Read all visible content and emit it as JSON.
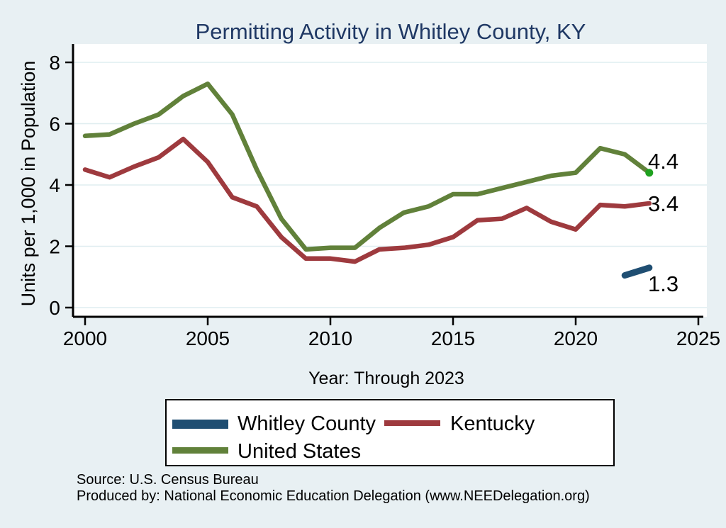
{
  "title": "Permitting Activity in Whitley County, KY",
  "colors": {
    "background": "#e8f0f3",
    "plot_background": "#ffffff",
    "grid": "#dfedf0",
    "axis": "#000000",
    "title_text": "#1f3864",
    "end_marker": "#1fa11f"
  },
  "chart_data": {
    "type": "line",
    "title": "Permitting Activity in Whitley County, KY",
    "xlabel": "Year: Through 2023",
    "ylabel": "Units per 1,000 in Population",
    "xlim": [
      2000,
      2025
    ],
    "ylim": [
      0,
      8
    ],
    "x_ticks": [
      2000,
      2005,
      2010,
      2015,
      2020,
      2025
    ],
    "y_ticks": [
      0,
      2,
      4,
      6,
      8
    ],
    "grid": true,
    "legend_position": "bottom",
    "series": [
      {
        "name": "Whitley County",
        "color": "#1f4e72",
        "line_width": 9,
        "x": [
          2022,
          2023
        ],
        "values": [
          1.05,
          1.3
        ],
        "end_label": "1.3"
      },
      {
        "name": "Kentucky",
        "color": "#9e3a3e",
        "line_width": 6.5,
        "x": [
          2000,
          2001,
          2002,
          2003,
          2004,
          2005,
          2006,
          2007,
          2008,
          2009,
          2010,
          2011,
          2012,
          2013,
          2014,
          2015,
          2016,
          2017,
          2018,
          2019,
          2020,
          2021,
          2022,
          2023
        ],
        "values": [
          4.5,
          4.25,
          4.6,
          4.9,
          5.5,
          4.75,
          3.6,
          3.3,
          2.3,
          1.6,
          1.6,
          1.5,
          1.9,
          1.95,
          2.05,
          2.3,
          2.85,
          2.9,
          3.25,
          2.8,
          2.55,
          3.35,
          3.3,
          3.4
        ],
        "end_label": "3.4"
      },
      {
        "name": "United States",
        "color": "#61813a",
        "line_width": 6.5,
        "x": [
          2000,
          2001,
          2002,
          2003,
          2004,
          2005,
          2006,
          2007,
          2008,
          2009,
          2010,
          2011,
          2012,
          2013,
          2014,
          2015,
          2016,
          2017,
          2018,
          2019,
          2020,
          2021,
          2022,
          2023
        ],
        "values": [
          5.6,
          5.65,
          6.0,
          6.3,
          6.9,
          7.3,
          6.3,
          4.5,
          2.9,
          1.9,
          1.95,
          1.95,
          2.6,
          3.1,
          3.3,
          3.7,
          3.7,
          3.9,
          4.1,
          4.3,
          4.4,
          5.2,
          5.0,
          4.4
        ],
        "end_label": "4.4",
        "end_marker": true
      }
    ]
  },
  "footer": {
    "line1": "Source: U.S. Census Bureau",
    "line2": "Produced by: National Economic Education Delegation (www.NEEDelegation.org)"
  }
}
